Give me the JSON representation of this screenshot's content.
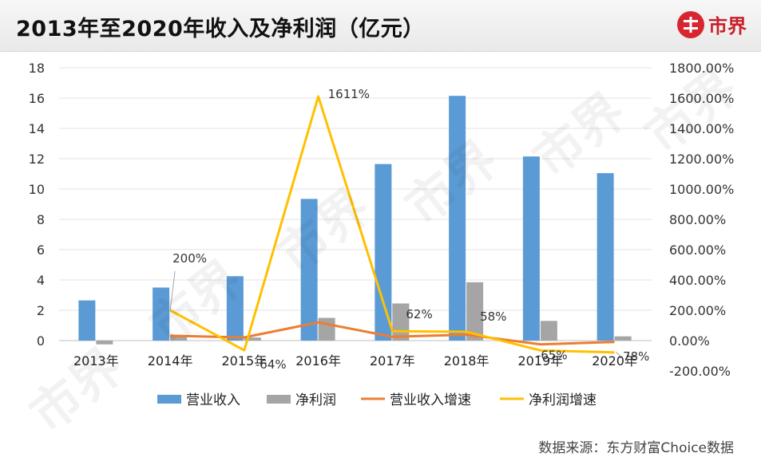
{
  "header": {
    "title": "2013年至2020年收入及净利润（亿元）",
    "logo_text": "市界",
    "logo_color": "#d8262f"
  },
  "footer": {
    "source": "数据来源：东方财富Choice数据"
  },
  "watermark_text": "市界",
  "chart_data": {
    "type": "bar",
    "title": "2013年至2020年收入及净利润（亿元）",
    "categories": [
      "2013年",
      "2014年",
      "2015年",
      "2016年",
      "2017年",
      "2018年",
      "2019年",
      "2020年"
    ],
    "y_left": {
      "ylim": [
        -2,
        18
      ],
      "ticks": [
        0,
        2,
        4,
        6,
        8,
        10,
        12,
        14,
        16,
        18
      ]
    },
    "y_right": {
      "ylim": [
        -200,
        1800
      ],
      "ticks": [
        -200,
        0,
        200,
        400,
        600,
        800,
        1000,
        1200,
        1400,
        1600,
        1800
      ],
      "tick_labels": [
        "-200.00%",
        "0.00%",
        "200.00%",
        "400.00%",
        "600.00%",
        "800.00%",
        "1000.00%",
        "1200.00%",
        "1400.00%",
        "1600.00%",
        "1800.00%"
      ]
    },
    "series": [
      {
        "name": "营业收入",
        "type": "bar",
        "axis": "left",
        "color": "#5b9bd5",
        "values": [
          2.65,
          3.5,
          4.25,
          9.35,
          11.65,
          16.15,
          12.15,
          11.05
        ]
      },
      {
        "name": "净利润",
        "type": "bar",
        "axis": "left",
        "color": "#a5a5a5",
        "values": [
          -0.25,
          0.3,
          0.2,
          1.5,
          2.45,
          3.85,
          1.3,
          0.28
        ]
      },
      {
        "name": "营业收入增速",
        "type": "line",
        "axis": "right",
        "color": "#ed7d31",
        "values": [
          null,
          32,
          21,
          120,
          25,
          39,
          -25,
          -9
        ]
      },
      {
        "name": "净利润增速",
        "type": "line",
        "axis": "right",
        "color": "#ffc000",
        "values": [
          null,
          200,
          -64,
          1611,
          62,
          58,
          -65,
          -78
        ]
      }
    ],
    "data_labels": [
      "200%",
      "-64%",
      "1611%",
      "62%",
      "58%",
      "-65%",
      "-78%"
    ],
    "legend": "bottom",
    "grid": "horizontal"
  }
}
